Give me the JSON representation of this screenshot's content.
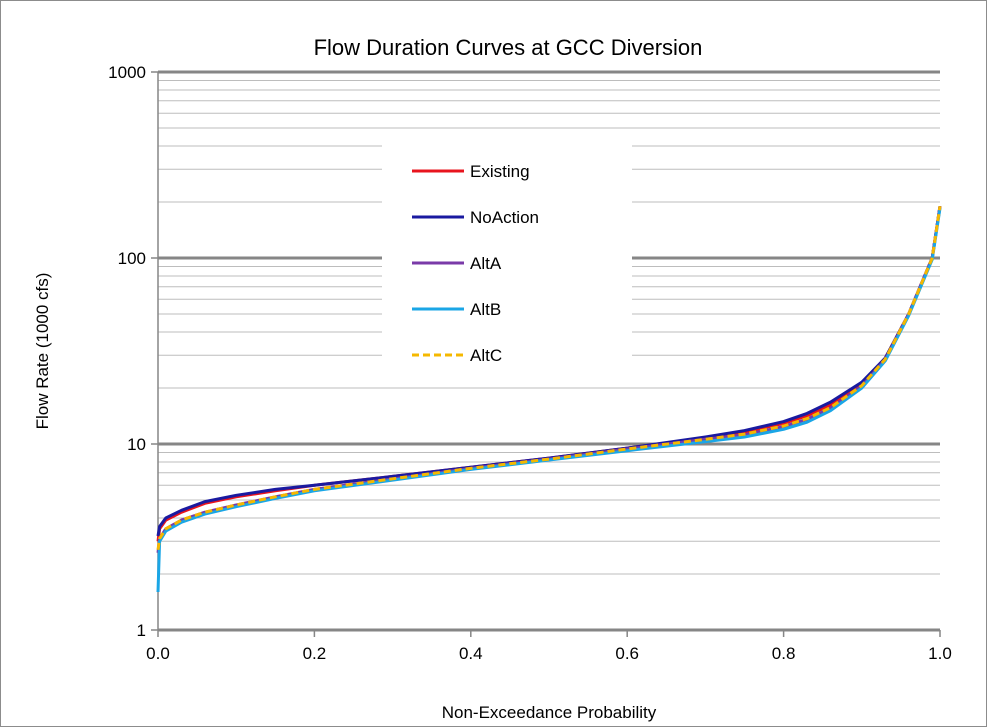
{
  "chart_data": {
    "type": "line",
    "title": "Flow Duration Curves at GCC Diversion",
    "xlabel": "Non-Exceedance Probability",
    "ylabel": "Flow Rate (1000 cfs)",
    "xlim": [
      0,
      1
    ],
    "ylim": [
      1,
      1000
    ],
    "y_scale": "log",
    "x_ticks": [
      0.0,
      0.2,
      0.4,
      0.6,
      0.8,
      1.0
    ],
    "x_tick_labels": [
      "0.0",
      "0.2",
      "0.4",
      "0.6",
      "0.8",
      "1.0"
    ],
    "y_ticks": [
      1,
      10,
      100,
      1000
    ],
    "y_tick_labels": [
      "1",
      "10",
      "100",
      "1000"
    ],
    "grid": "major and minor horizontal",
    "legend_position": "upper-center",
    "series": [
      {
        "name": "Existing",
        "color": "#e8141e",
        "style": "solid",
        "x": [
          0,
          0.002,
          0.01,
          0.03,
          0.06,
          0.1,
          0.15,
          0.2,
          0.3,
          0.4,
          0.5,
          0.6,
          0.7,
          0.75,
          0.8,
          0.83,
          0.86,
          0.9,
          0.93,
          0.96,
          0.99,
          1.0
        ],
        "y": [
          3.0,
          3.5,
          3.9,
          4.3,
          4.8,
          5.2,
          5.6,
          6.0,
          6.7,
          7.5,
          8.4,
          9.5,
          10.8,
          11.6,
          12.9,
          14.2,
          16.2,
          21.0,
          29.0,
          50.0,
          100.0,
          190.0
        ]
      },
      {
        "name": "NoAction",
        "color": "#1a1aa0",
        "style": "solid",
        "x": [
          0,
          0.002,
          0.01,
          0.03,
          0.06,
          0.1,
          0.15,
          0.2,
          0.3,
          0.4,
          0.5,
          0.6,
          0.7,
          0.75,
          0.8,
          0.83,
          0.86,
          0.9,
          0.93,
          0.96,
          0.99,
          1.0
        ],
        "y": [
          3.2,
          3.6,
          4.0,
          4.4,
          4.9,
          5.3,
          5.7,
          6.0,
          6.7,
          7.5,
          8.4,
          9.5,
          10.9,
          11.8,
          13.2,
          14.6,
          16.8,
          21.5,
          29.0,
          50.0,
          100.0,
          190.0
        ]
      },
      {
        "name": "AltA",
        "color": "#7a3aa8",
        "style": "solid",
        "x": [
          0,
          0.002,
          0.01,
          0.03,
          0.06,
          0.1,
          0.15,
          0.2,
          0.3,
          0.4,
          0.5,
          0.6,
          0.7,
          0.75,
          0.8,
          0.83,
          0.86,
          0.9,
          0.93,
          0.96,
          0.99,
          1.0
        ],
        "y": [
          2.6,
          3.1,
          3.5,
          3.9,
          4.3,
          4.7,
          5.2,
          5.7,
          6.5,
          7.4,
          8.3,
          9.4,
          10.6,
          11.2,
          12.4,
          13.6,
          15.6,
          20.5,
          28.5,
          50.0,
          100.0,
          190.0
        ]
      },
      {
        "name": "AltB",
        "color": "#1aa6e6",
        "style": "solid",
        "x": [
          0,
          0.002,
          0.01,
          0.03,
          0.06,
          0.1,
          0.15,
          0.2,
          0.3,
          0.4,
          0.5,
          0.6,
          0.7,
          0.75,
          0.8,
          0.83,
          0.86,
          0.9,
          0.93,
          0.96,
          0.99,
          1.0
        ],
        "y": [
          1.6,
          3.0,
          3.4,
          3.8,
          4.2,
          4.6,
          5.1,
          5.6,
          6.4,
          7.3,
          8.2,
          9.2,
          10.3,
          10.9,
          12.0,
          13.1,
          15.1,
          20.0,
          28.0,
          49.0,
          98.0,
          185.0
        ]
      },
      {
        "name": "AltC",
        "color": "#f5b800",
        "style": "dashed",
        "x": [
          0,
          0.002,
          0.01,
          0.03,
          0.06,
          0.1,
          0.15,
          0.2,
          0.3,
          0.4,
          0.5,
          0.6,
          0.7,
          0.75,
          0.8,
          0.83,
          0.86,
          0.9,
          0.93,
          0.96,
          0.99,
          1.0
        ],
        "y": [
          2.7,
          3.1,
          3.5,
          3.9,
          4.3,
          4.7,
          5.2,
          5.7,
          6.5,
          7.4,
          8.3,
          9.4,
          10.6,
          11.3,
          12.5,
          13.7,
          15.7,
          20.6,
          28.6,
          50.0,
          100.0,
          190.0
        ]
      }
    ]
  }
}
